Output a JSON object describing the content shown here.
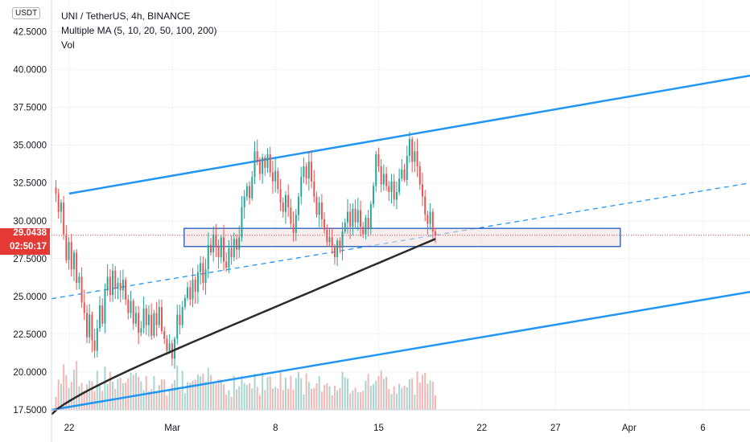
{
  "header": {
    "currency_badge": "USDT",
    "symbol_line": "UNI / TetherUS, 4h, BINANCE",
    "ma_line": "Multiple MA (5, 10, 20, 50, 100, 200)",
    "vol_line": "Vol"
  },
  "price_tag": {
    "price": "29.0438",
    "countdown": "02:50:17"
  },
  "colors": {
    "up": "#26a69a",
    "down": "#ef5350",
    "channel": "#2196f3",
    "ma": "#2a2a2a",
    "last_price": "#e53935",
    "zone_border": "#1e5bbf"
  },
  "chart_data": {
    "type": "candlestick",
    "y_axis": {
      "ticks": [
        "17.5000",
        "20.0000",
        "22.5000",
        "25.0000",
        "27.5000",
        "30.0000",
        "32.5000",
        "35.0000",
        "37.5000",
        "40.0000",
        "42.5000"
      ],
      "range": [
        17.5,
        44.6
      ]
    },
    "x_axis": {
      "ticks": [
        "22",
        "Mar",
        "8",
        "15",
        "22",
        "27",
        "Apr",
        "6"
      ],
      "tick_days": [
        0,
        7,
        14,
        21,
        28,
        33,
        38,
        43
      ],
      "range_days": [
        -1.2,
        46.2
      ]
    },
    "last_price": 29.0438,
    "closes": [
      31.8,
      30.6,
      31.2,
      29.1,
      27.4,
      28.6,
      26.8,
      27.9,
      25.9,
      26.3,
      24.6,
      23.9,
      22.3,
      23.8,
      22.1,
      21.4,
      22.9,
      24.4,
      23.2,
      25.4,
      26.3,
      25.1,
      26.7,
      25.5,
      25.9,
      25.4,
      26.1,
      24.8,
      23.9,
      24.7,
      23.2,
      23.9,
      22.6,
      22.9,
      24.2,
      23.1,
      23.8,
      22.4,
      23.9,
      23.1,
      24.3,
      22.7,
      22.2,
      21.4,
      21.9,
      20.9,
      22.2,
      23.8,
      23.1,
      24.3,
      24.9,
      25.6,
      24.8,
      26.1,
      25.3,
      26.6,
      27.2,
      25.9,
      26.8,
      28.4,
      27.9,
      29.1,
      28.3,
      27.6,
      28.9,
      27.3,
      26.9,
      28.2,
      27.6,
      28.8,
      28.1,
      28.9,
      30.9,
      31.6,
      32.3,
      31.5,
      32.9,
      34.6,
      33.9,
      33.1,
      34.2,
      33.5,
      34.4,
      33.2,
      32.6,
      33.3,
      32.1,
      31.2,
      30.6,
      31.7,
      30.9,
      29.8,
      29.2,
      30.4,
      31.6,
      32.9,
      33.6,
      32.8,
      33.9,
      32.6,
      31.6,
      30.4,
      31.2,
      30.1,
      29.4,
      28.6,
      28.9,
      28.3,
      27.6,
      28.7,
      28.2,
      29.3,
      29.9,
      30.6,
      29.6,
      30.8,
      29.9,
      30.7,
      29.6,
      29.1,
      30.2,
      29.5,
      31.1,
      32.3,
      34.4,
      33.6,
      32.4,
      33.1,
      32.3,
      31.9,
      32.6,
      31.4,
      31.9,
      32.8,
      33.4,
      32.7,
      34.3,
      35.4,
      33.9,
      34.6,
      33.6,
      32.4,
      31.6,
      30.4,
      29.8,
      30.6,
      29.3,
      29.04
    ]
  },
  "annotations": {
    "channel_upper": [
      [
        0,
        31.8
      ],
      [
        46.2,
        39.6
      ]
    ],
    "channel_lower": [
      [
        -1.2,
        17.5
      ],
      [
        46.2,
        25.3
      ]
    ],
    "channel_mid": [
      [
        -1.2,
        24.85
      ],
      [
        46.2,
        32.5
      ]
    ],
    "zone": {
      "x0_days": 7.8,
      "x1_days": 37.4,
      "y_top": 29.5,
      "y_bottom": 28.3
    }
  }
}
